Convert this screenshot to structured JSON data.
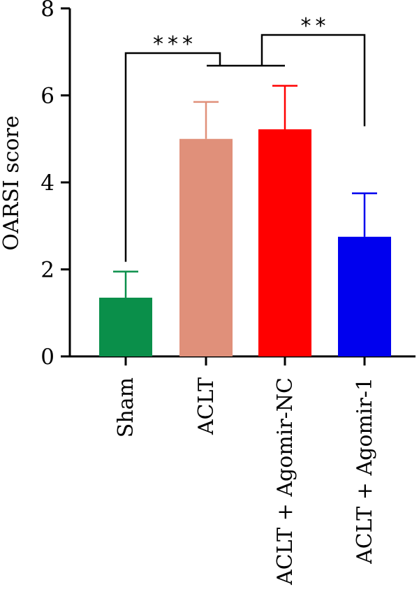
{
  "chart_data": {
    "type": "bar",
    "title": "",
    "xlabel": "",
    "ylabel": "OARSI score",
    "ylim": [
      0,
      8
    ],
    "yticks": [
      0,
      2,
      4,
      6,
      8
    ],
    "grid": false,
    "categories": [
      "Sham",
      "ACLT",
      "ACLT + Agomir-NC",
      "ACLT + Agomir-1"
    ],
    "values": [
      1.35,
      5.0,
      5.22,
      2.75
    ],
    "errors": [
      0.6,
      0.85,
      1.0,
      1.0
    ],
    "colors": [
      "#0a8f4a",
      "#e0907a",
      "#ff0000",
      "#0000ee"
    ],
    "significance": [
      {
        "label": "***",
        "from": "Sham",
        "to": "ACLT + Agomir-NC group"
      },
      {
        "label": "**",
        "from": "ACLT + Agomir-NC group",
        "to": "ACLT + Agomir-1"
      }
    ]
  }
}
